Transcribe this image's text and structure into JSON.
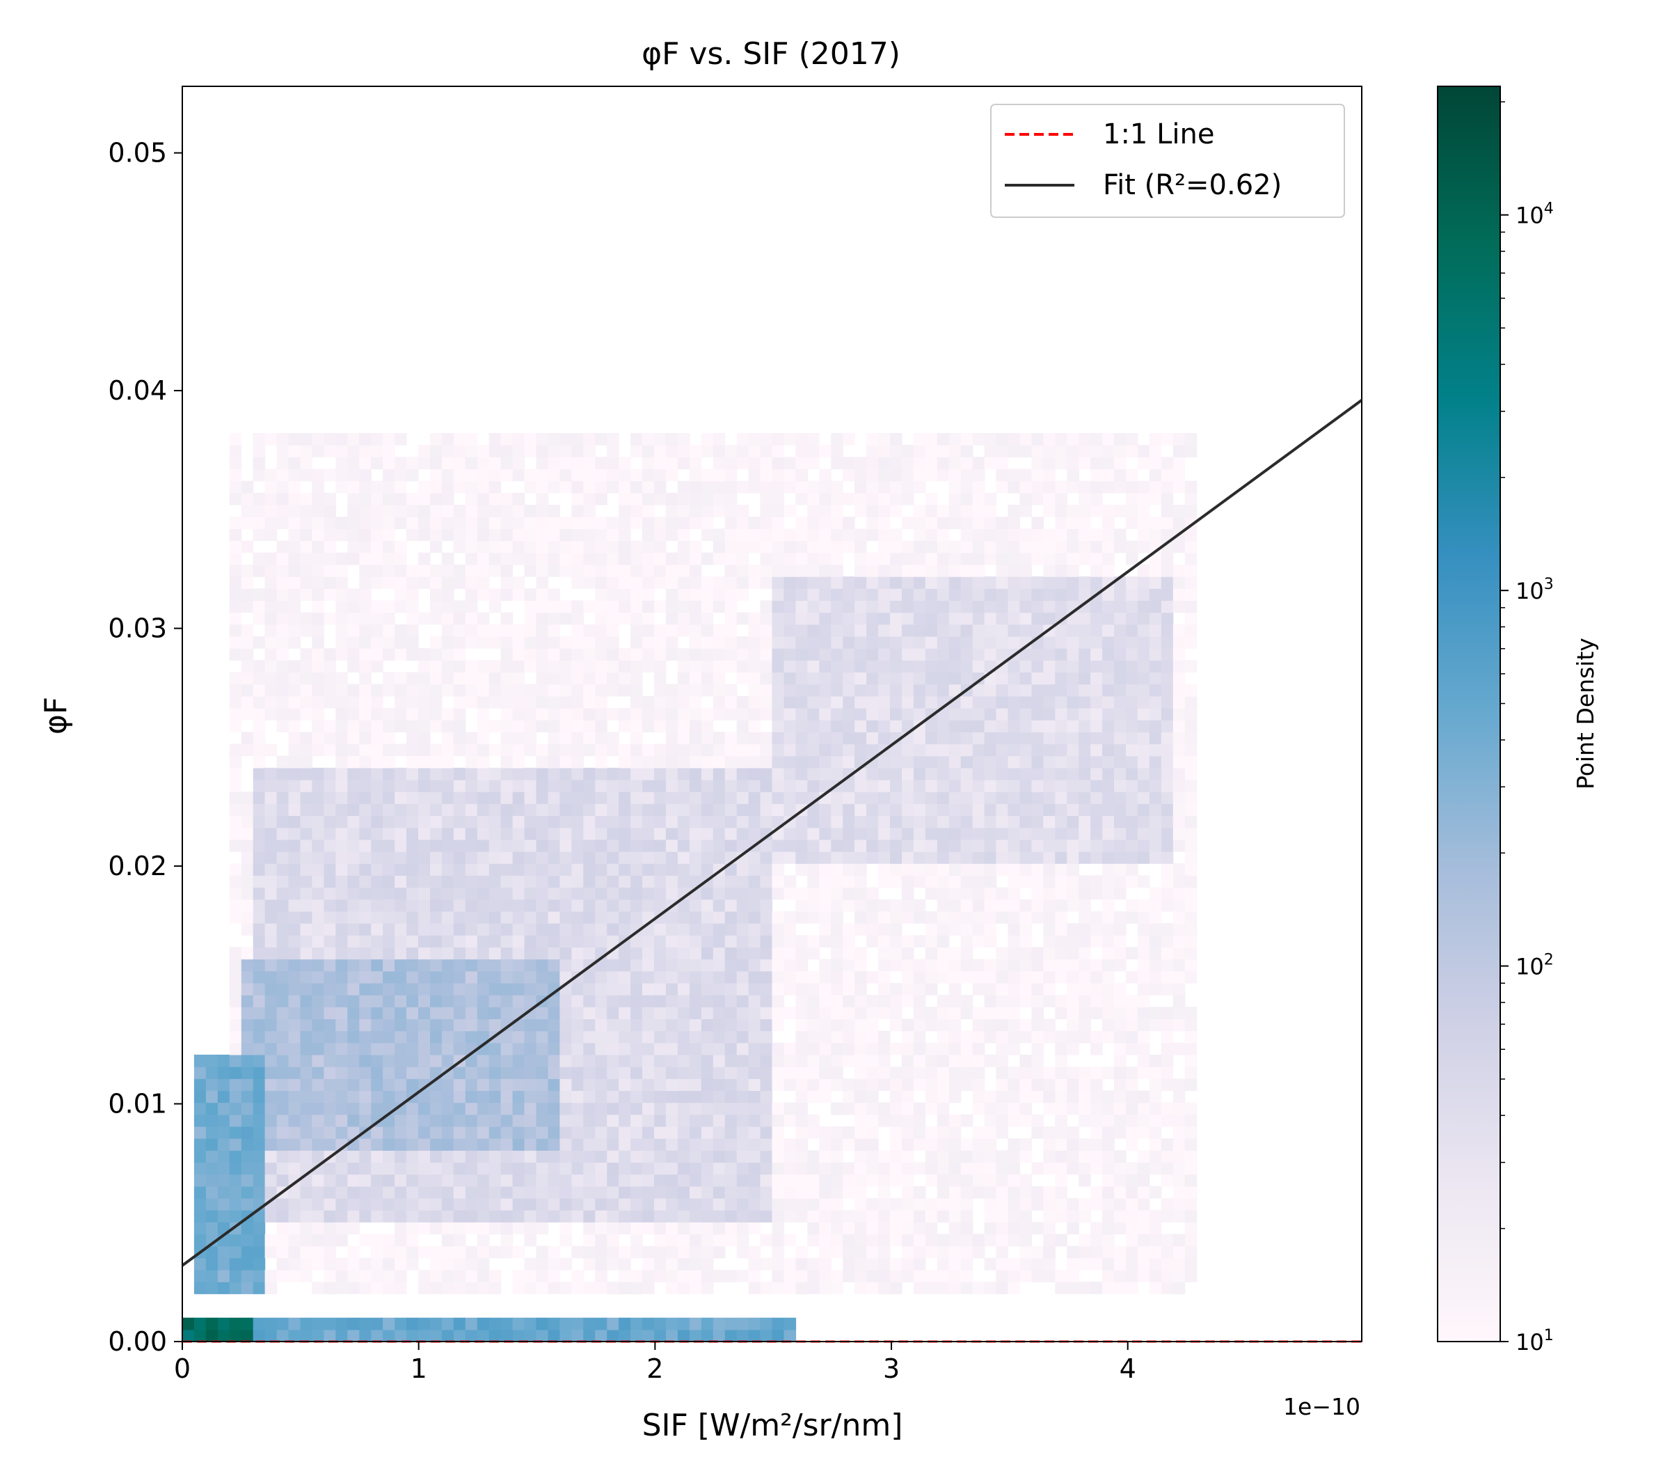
{
  "chart_data": {
    "type": "heatmap",
    "title": "φF vs. SIF (2017)",
    "xlabel": "SIF [W/m²/sr/nm]",
    "ylabel": "φF",
    "x_offset_text": "1e−10",
    "x_scale_factor": 1e-10,
    "xlim": [
      0,
      4.99
    ],
    "ylim": [
      0,
      0.0528
    ],
    "x_ticks": [
      0,
      1,
      2,
      3,
      4
    ],
    "x_tick_labels": [
      "0",
      "1",
      "2",
      "3",
      "4"
    ],
    "y_ticks": [
      0,
      0.01,
      0.02,
      0.03,
      0.04,
      0.05
    ],
    "y_tick_labels": [
      "0.00",
      "0.01",
      "0.02",
      "0.03",
      "0.04",
      "0.05"
    ],
    "grid": false,
    "legend_position": "top-right",
    "series": [
      {
        "name": "1:1 Line",
        "type": "line",
        "style": "dashed",
        "color": "#ff0000",
        "x": [
          0,
          4.99
        ],
        "y": [
          0,
          5e-10
        ]
      },
      {
        "name": "Fit (R²=0.62)",
        "type": "line",
        "style": "solid",
        "color": "#2b2b2b",
        "x": [
          0,
          4.99
        ],
        "y": [
          0.0032,
          0.0396
        ]
      }
    ],
    "colorbar": {
      "label": "Point Density",
      "scale": "log",
      "range": [
        10,
        22000
      ],
      "ticks": [
        10,
        100,
        1000,
        10000
      ],
      "tick_labels": [
        "10",
        "10",
        "10",
        "10"
      ],
      "tick_exponents": [
        "1",
        "2",
        "3",
        "4"
      ],
      "colormap": [
        "#fff7fb",
        "#ece7f2",
        "#d0d1e6",
        "#a6bddb",
        "#67a9cf",
        "#3690c0",
        "#02818a",
        "#016c59",
        "#014636"
      ]
    },
    "density_regions": [
      {
        "x_range": [
          0.25,
          1.6
        ],
        "y_range": [
          0.008,
          0.016
        ],
        "level": 150
      },
      {
        "x_range": [
          0.05,
          0.35
        ],
        "y_range": [
          0.002,
          0.012
        ],
        "level": 400
      },
      {
        "x_range": [
          0.3,
          2.5
        ],
        "y_range": [
          0.005,
          0.024
        ],
        "level": 45
      },
      {
        "x_range": [
          2.5,
          4.2
        ],
        "y_range": [
          0.02,
          0.032
        ],
        "level": 40
      },
      {
        "x_range": [
          0.2,
          4.3
        ],
        "y_range": [
          0.002,
          0.038
        ],
        "level": 12
      },
      {
        "x_range": [
          0,
          2.6
        ],
        "y_range": [
          0,
          0.0009
        ],
        "level": 500
      },
      {
        "x_range": [
          0,
          0.3
        ],
        "y_range": [
          0,
          0.0009
        ],
        "level": 8000
      }
    ]
  }
}
